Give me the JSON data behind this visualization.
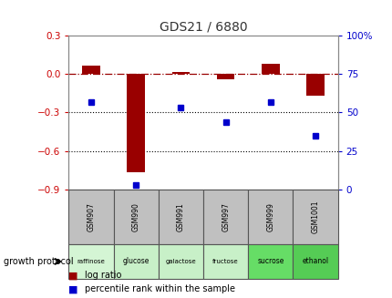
{
  "title": "GDS21 / 6880",
  "samples": [
    "GSM907",
    "GSM990",
    "GSM991",
    "GSM997",
    "GSM999",
    "GSM1001"
  ],
  "protocols": [
    "raffinose",
    "glucose",
    "galactose",
    "fructose",
    "sucrose",
    "ethanol"
  ],
  "protocol_colors": [
    "#d4f5d4",
    "#c8f0c8",
    "#c8f0c8",
    "#c8f0c8",
    "#66dd66",
    "#55cc55"
  ],
  "log_ratio": [
    0.07,
    -0.77,
    0.02,
    -0.04,
    0.08,
    -0.17
  ],
  "percentile_rank": [
    57,
    3,
    53,
    44,
    57,
    35
  ],
  "bar_color": "#990000",
  "dot_color": "#0000cc",
  "ylim_left": [
    -0.9,
    0.3
  ],
  "ylim_right": [
    0,
    100
  ],
  "yticks_left": [
    -0.9,
    -0.6,
    -0.3,
    0.0,
    0.3
  ],
  "yticks_right": [
    0,
    25,
    50,
    75,
    100
  ],
  "hline_y": 0.0,
  "dotted_lines": [
    -0.3,
    -0.6
  ],
  "growth_protocol_label": "growth protocol",
  "legend_logratio": "log ratio",
  "legend_percentile": "percentile rank within the sample",
  "bg_color": "#ffffff",
  "plot_bg": "#ffffff",
  "title_color": "#333333",
  "left_tick_color": "#cc0000",
  "right_tick_color": "#0000cc",
  "sample_bg": "#c0c0c0",
  "cell_edge": "#555555"
}
